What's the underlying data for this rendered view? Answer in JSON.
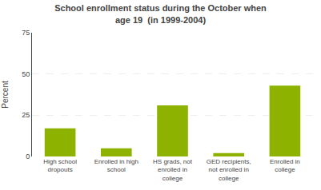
{
  "chart_data": {
    "type": "bar",
    "title": "School enrollment status during the October when\nage 19  (in 1999-2004)",
    "categories": [
      "High school\ndropouts",
      "Enrolled in high\nschool",
      "HS grads, not\nenrolled in\ncollege",
      "GED recipients,\nnot enrolled in\ncollege",
      "Enrolled in\ncollege"
    ],
    "values": [
      17,
      5,
      31,
      2,
      43
    ],
    "color": "#8db300",
    "ylabel": "Percent",
    "ylim": [
      0,
      75
    ],
    "yticks": [
      0,
      25,
      50,
      75
    ],
    "grid": true
  }
}
